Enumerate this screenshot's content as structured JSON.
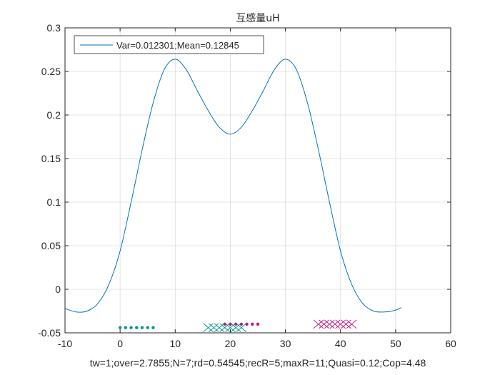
{
  "chart_data": {
    "type": "line",
    "title": "互感量uH",
    "xlabel": "tw=1;over=2.7855;N=7;rd=0.54545;recR=5;maxR=11;Quasi=0.12;Cop=4.48",
    "ylabel": "",
    "xlim": [
      -10,
      60
    ],
    "ylim": [
      -0.05,
      0.3
    ],
    "xticks": [
      "-10",
      "0",
      "10",
      "20",
      "30",
      "40",
      "50",
      "60"
    ],
    "yticks": [
      "-0.05",
      "0",
      "0.05",
      "0.1",
      "0.15",
      "0.2",
      "0.25",
      "0.3"
    ],
    "grid": true,
    "legend_position": "top-left",
    "colors": {
      "curve": "#0072BD",
      "teal": "#009688",
      "magenta": "#C2187A"
    },
    "series": [
      {
        "name": "Var=0.012301;Mean=0.12845",
        "style": "line",
        "x": [
          -10,
          -8,
          -6,
          -4,
          -2,
          0,
          2,
          4,
          6,
          8,
          10,
          12,
          14,
          16,
          18,
          20,
          22,
          24,
          26,
          28,
          30,
          32,
          34,
          36,
          38,
          40,
          42,
          44,
          46,
          48,
          50,
          51
        ],
        "values": [
          -0.022,
          -0.026,
          -0.025,
          -0.016,
          0.006,
          0.044,
          0.1,
          0.16,
          0.214,
          0.252,
          0.264,
          0.252,
          0.228,
          0.205,
          0.186,
          0.178,
          0.186,
          0.205,
          0.228,
          0.252,
          0.264,
          0.252,
          0.214,
          0.16,
          0.1,
          0.044,
          0.006,
          -0.016,
          -0.025,
          -0.026,
          -0.024,
          -0.021
        ]
      },
      {
        "style": "dot",
        "color": "teal",
        "x": [
          0,
          1,
          2,
          3,
          4,
          5,
          6
        ],
        "values": [
          -0.044,
          -0.044,
          -0.044,
          -0.044,
          -0.044,
          -0.044,
          -0.044
        ]
      },
      {
        "style": "dot",
        "color": "magenta",
        "x": [
          19,
          20,
          21,
          22,
          23,
          24,
          25
        ],
        "values": [
          -0.04,
          -0.04,
          -0.04,
          -0.04,
          -0.04,
          -0.04,
          -0.04
        ]
      },
      {
        "style": "cross",
        "color": "teal",
        "x": [
          16,
          17,
          18,
          19,
          20,
          21,
          22
        ],
        "values": [
          -0.044,
          -0.044,
          -0.044,
          -0.044,
          -0.044,
          -0.044,
          -0.044
        ]
      },
      {
        "style": "cross",
        "color": "magenta",
        "x": [
          36,
          37,
          38,
          39,
          40,
          41,
          42
        ],
        "values": [
          -0.04,
          -0.04,
          -0.04,
          -0.04,
          -0.04,
          -0.04,
          -0.04
        ]
      }
    ]
  }
}
